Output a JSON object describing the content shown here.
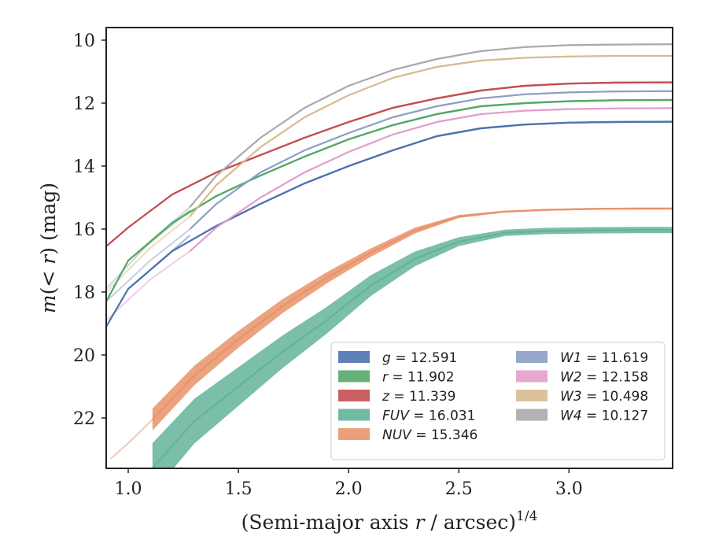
{
  "chart_data": {
    "type": "line",
    "xlabel": "(Semi-major axis r / arcsec)^1/4",
    "xlabel_parts": {
      "pre": "(Semi-major axis ",
      "var": "r",
      "mid": " / arcsec)",
      "exp": "1/4"
    },
    "ylabel": "m(<r) (mag)",
    "ylabel_parts": {
      "fn": "m",
      "open": "(",
      "var": "< r",
      "close": ")",
      "unit": " (mag)"
    },
    "xlim": [
      0.9,
      3.47
    ],
    "ylim": [
      23.6,
      9.6
    ],
    "y_inverted": true,
    "xticks": [
      1.0,
      1.5,
      2.0,
      2.5,
      3.0
    ],
    "xtick_labels": [
      "1.0",
      "1.5",
      "2.0",
      "2.5",
      "3.0"
    ],
    "yticks": [
      10,
      12,
      14,
      16,
      18,
      20,
      22
    ],
    "ytick_labels": [
      "10",
      "12",
      "14",
      "16",
      "18",
      "20",
      "22"
    ],
    "grid": false,
    "legend_position": "lower-right",
    "series": [
      {
        "name": "g = 12.591",
        "label_var": "g",
        "label_val": "= 12.591",
        "color": "#4c72b0",
        "band": 0.06,
        "x": [
          0.9,
          1.0,
          1.2,
          1.4,
          1.6,
          1.8,
          2.0,
          2.2,
          2.4,
          2.6,
          2.8,
          3.0,
          3.2,
          3.47
        ],
        "y": [
          19.1,
          17.9,
          16.7,
          15.9,
          15.2,
          14.55,
          14.0,
          13.5,
          13.05,
          12.8,
          12.68,
          12.62,
          12.6,
          12.59
        ]
      },
      {
        "name": "r = 11.902",
        "label_var": "r",
        "label_val": "= 11.902",
        "color": "#55a868",
        "band": 0.06,
        "x": [
          0.9,
          1.0,
          1.2,
          1.4,
          1.6,
          1.8,
          2.0,
          2.2,
          2.4,
          2.6,
          2.8,
          3.0,
          3.2,
          3.47
        ],
        "y": [
          18.3,
          17.0,
          15.8,
          14.95,
          14.3,
          13.7,
          13.15,
          12.7,
          12.35,
          12.1,
          12.0,
          11.94,
          11.91,
          11.9
        ]
      },
      {
        "name": "z = 11.339",
        "label_var": "z",
        "label_val": "= 11.339",
        "color": "#c44e52",
        "band": 0.06,
        "x": [
          0.9,
          1.0,
          1.2,
          1.4,
          1.6,
          1.8,
          2.0,
          2.2,
          2.4,
          2.6,
          2.8,
          3.0,
          3.2,
          3.47
        ],
        "y": [
          16.55,
          15.95,
          14.9,
          14.2,
          13.65,
          13.1,
          12.6,
          12.15,
          11.85,
          11.6,
          11.45,
          11.38,
          11.35,
          11.34
        ]
      },
      {
        "name": "FUV = 16.031",
        "label_var": "FUV",
        "label_val": "= 16.031",
        "color": "#64b39a",
        "band_start": 1.6,
        "band_end": 0.2,
        "x": [
          1.11,
          1.3,
          1.5,
          1.7,
          1.9,
          2.1,
          2.3,
          2.5,
          2.71,
          2.9,
          3.1,
          3.3,
          3.47
        ],
        "y": [
          23.6,
          22.1,
          21.0,
          19.9,
          18.9,
          17.8,
          16.95,
          16.4,
          16.12,
          16.06,
          16.04,
          16.03,
          16.03
        ]
      },
      {
        "name": "NUV = 15.346",
        "label_var": "NUV",
        "label_val": "= 15.346",
        "color": "#e8936a",
        "band_start": 0.7,
        "band_end": 0.06,
        "x": [
          1.11,
          1.3,
          1.5,
          1.7,
          1.9,
          2.1,
          2.3,
          2.5,
          2.7,
          2.9,
          3.1,
          3.3,
          3.47
        ],
        "y": [
          22.05,
          20.65,
          19.5,
          18.45,
          17.55,
          16.75,
          16.05,
          15.6,
          15.45,
          15.39,
          15.36,
          15.35,
          15.35
        ]
      },
      {
        "name": "W1 = 11.619",
        "label_var": "W1",
        "label_val": "= 11.619",
        "color": "#8c9fc5",
        "band": 0.05,
        "x": [
          1.28,
          1.4,
          1.6,
          1.8,
          2.0,
          2.2,
          2.4,
          2.6,
          2.8,
          3.0,
          3.2,
          3.47
        ],
        "y": [
          16.0,
          15.2,
          14.2,
          13.5,
          12.95,
          12.45,
          12.1,
          11.85,
          11.72,
          11.66,
          11.63,
          11.62
        ]
      },
      {
        "name": "W2 = 12.158",
        "label_var": "W2",
        "label_val": "= 12.158",
        "color": "#e39ecb",
        "band": 0.05,
        "x": [
          1.28,
          1.4,
          1.6,
          1.8,
          2.0,
          2.2,
          2.4,
          2.6,
          2.8,
          3.0,
          3.2,
          3.47
        ],
        "y": [
          16.7,
          15.95,
          15.0,
          14.2,
          13.55,
          13.0,
          12.6,
          12.35,
          12.24,
          12.19,
          12.17,
          12.16
        ]
      },
      {
        "name": "W3 = 10.498",
        "label_var": "W3",
        "label_val": "= 10.498",
        "color": "#d8bb8f",
        "band": 0.05,
        "x": [
          1.28,
          1.4,
          1.6,
          1.8,
          2.0,
          2.2,
          2.4,
          2.6,
          2.8,
          3.0,
          3.2,
          3.47
        ],
        "y": [
          15.6,
          14.6,
          13.4,
          12.45,
          11.75,
          11.2,
          10.85,
          10.65,
          10.56,
          10.52,
          10.5,
          10.5
        ]
      },
      {
        "name": "W4 = 10.127",
        "label_var": "W4",
        "label_val": "= 10.127",
        "color": "#aaaaaa",
        "band": 0.05,
        "x": [
          1.28,
          1.4,
          1.6,
          1.8,
          2.0,
          2.2,
          2.4,
          2.6,
          2.8,
          3.0,
          3.2,
          3.47
        ],
        "y": [
          15.3,
          14.3,
          13.1,
          12.15,
          11.45,
          10.95,
          10.6,
          10.35,
          10.22,
          10.16,
          10.14,
          10.13
        ]
      }
    ],
    "extrapolations": [
      {
        "series": "NUV = 15.346",
        "x": [
          0.92,
          1.0,
          1.11
        ],
        "y": [
          23.3,
          22.8,
          22.05
        ]
      },
      {
        "series": "FUV = 16.031",
        "x": [
          1.05,
          1.11
        ],
        "y": [
          23.6,
          23.6
        ]
      },
      {
        "series": "g = 12.591",
        "x": [
          1.0,
          1.28
        ],
        "y": [
          17.9,
          16.2
        ]
      },
      {
        "series": "r = 11.902",
        "x": [
          1.0,
          1.28
        ],
        "y": [
          17.0,
          15.4
        ]
      },
      {
        "series": "W1 = 11.619",
        "x": [
          0.9,
          1.1,
          1.28
        ],
        "y": [
          18.3,
          17.0,
          16.0
        ]
      },
      {
        "series": "W2 = 12.158",
        "x": [
          0.9,
          1.1,
          1.28
        ],
        "y": [
          18.9,
          17.6,
          16.7
        ]
      },
      {
        "series": "W3 = 10.498",
        "x": [
          0.9,
          1.1,
          1.28
        ],
        "y": [
          18.0,
          16.6,
          15.6
        ]
      },
      {
        "series": "W4 = 10.127",
        "x": [
          0.9,
          1.1,
          1.28
        ],
        "y": [
          17.9,
          16.4,
          15.3
        ]
      }
    ]
  }
}
